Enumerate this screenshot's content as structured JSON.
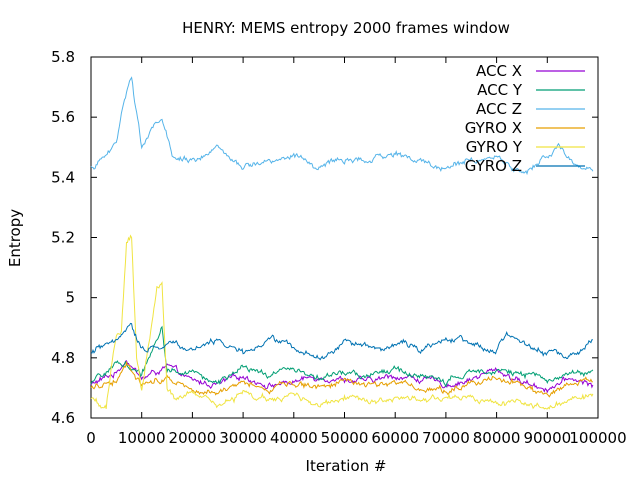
{
  "chart_data": {
    "type": "line",
    "title": "HENRY: MEMS entropy 2000 frames window",
    "xlabel": "Iteration #",
    "ylabel": "Entropy",
    "xlim": [
      0,
      100000
    ],
    "ylim": [
      4.6,
      5.8
    ],
    "xticks": [
      0,
      10000,
      20000,
      30000,
      40000,
      50000,
      60000,
      70000,
      80000,
      90000,
      100000
    ],
    "xtick_labels": [
      "0",
      "10000",
      "20000",
      "30000",
      "40000",
      "50000",
      "60000",
      "70000",
      "80000",
      "90000",
      "100000"
    ],
    "yticks": [
      4.6,
      4.8,
      5.0,
      5.2,
      5.4,
      5.6,
      5.8
    ],
    "ytick_labels": [
      "4.6",
      "4.8",
      "5",
      "5.2",
      "5.4",
      "5.6",
      "5.8"
    ],
    "grid": false,
    "legend_position": "top-right",
    "series": [
      {
        "name": "ACC X",
        "color": "#9400d3",
        "x": [
          0,
          5000,
          7000,
          10000,
          15000,
          20000,
          25000,
          30000,
          35000,
          40000,
          45000,
          50000,
          55000,
          60000,
          65000,
          70000,
          75000,
          80000,
          85000,
          90000,
          95000,
          99000
        ],
        "y": [
          4.71,
          4.75,
          4.8,
          4.73,
          4.77,
          4.72,
          4.71,
          4.74,
          4.71,
          4.72,
          4.74,
          4.73,
          4.72,
          4.74,
          4.73,
          4.71,
          4.73,
          4.76,
          4.72,
          4.7,
          4.73,
          4.71
        ]
      },
      {
        "name": "ACC Y",
        "color": "#009e73",
        "x": [
          0,
          5000,
          7000,
          10000,
          14000,
          15000,
          20000,
          25000,
          30000,
          35000,
          40000,
          45000,
          50000,
          55000,
          60000,
          65000,
          70000,
          75000,
          80000,
          85000,
          90000,
          95000,
          99000
        ],
        "y": [
          4.71,
          4.78,
          4.78,
          4.74,
          4.91,
          4.76,
          4.75,
          4.72,
          4.76,
          4.74,
          4.77,
          4.73,
          4.75,
          4.74,
          4.76,
          4.74,
          4.72,
          4.75,
          4.77,
          4.74,
          4.73,
          4.75,
          4.76
        ]
      },
      {
        "name": "ACC Z",
        "color": "#56b4e9",
        "x": [
          0,
          3000,
          5000,
          7000,
          8000,
          10000,
          13000,
          14000,
          16000,
          20000,
          25000,
          30000,
          35000,
          40000,
          45000,
          50000,
          55000,
          60000,
          65000,
          70000,
          75000,
          80000,
          85000,
          90000,
          92000,
          95000,
          99000
        ],
        "y": [
          5.43,
          5.47,
          5.52,
          5.69,
          5.74,
          5.5,
          5.58,
          5.6,
          5.46,
          5.46,
          5.49,
          5.43,
          5.46,
          5.47,
          5.43,
          5.46,
          5.45,
          5.48,
          5.45,
          5.43,
          5.46,
          5.47,
          5.41,
          5.47,
          5.5,
          5.45,
          5.42
        ]
      },
      {
        "name": "GYRO X",
        "color": "#e69f00",
        "x": [
          0,
          5000,
          7000,
          10000,
          15000,
          20000,
          25000,
          30000,
          35000,
          40000,
          45000,
          50000,
          55000,
          60000,
          65000,
          70000,
          75000,
          80000,
          85000,
          90000,
          95000,
          99000
        ],
        "y": [
          4.7,
          4.73,
          4.79,
          4.71,
          4.74,
          4.7,
          4.69,
          4.71,
          4.7,
          4.72,
          4.7,
          4.73,
          4.71,
          4.72,
          4.7,
          4.69,
          4.72,
          4.74,
          4.71,
          4.68,
          4.71,
          4.72
        ]
      },
      {
        "name": "GYRO Y",
        "color": "#f0e442",
        "x": [
          0,
          3000,
          5000,
          6000,
          7000,
          8000,
          9000,
          10000,
          13000,
          14000,
          15000,
          17000,
          20000,
          25000,
          30000,
          35000,
          40000,
          45000,
          50000,
          55000,
          60000,
          65000,
          70000,
          75000,
          80000,
          85000,
          90000,
          95000,
          99000
        ],
        "y": [
          4.66,
          4.63,
          4.88,
          4.89,
          5.18,
          5.2,
          4.8,
          4.68,
          5.03,
          5.05,
          4.7,
          4.67,
          4.68,
          4.64,
          4.68,
          4.66,
          4.67,
          4.64,
          4.68,
          4.66,
          4.67,
          4.65,
          4.67,
          4.66,
          4.64,
          4.65,
          4.63,
          4.66,
          4.68
        ]
      },
      {
        "name": "GYRO Z",
        "color": "#0072b2",
        "x": [
          0,
          5000,
          8000,
          10000,
          15000,
          20000,
          25000,
          30000,
          35000,
          40000,
          45000,
          50000,
          55000,
          60000,
          65000,
          70000,
          75000,
          80000,
          82000,
          85000,
          90000,
          95000,
          99000
        ],
        "y": [
          4.82,
          4.85,
          4.91,
          4.83,
          4.85,
          4.83,
          4.86,
          4.81,
          4.86,
          4.84,
          4.8,
          4.85,
          4.83,
          4.85,
          4.83,
          4.87,
          4.84,
          4.83,
          4.89,
          4.85,
          4.82,
          4.8,
          4.86
        ]
      }
    ]
  }
}
